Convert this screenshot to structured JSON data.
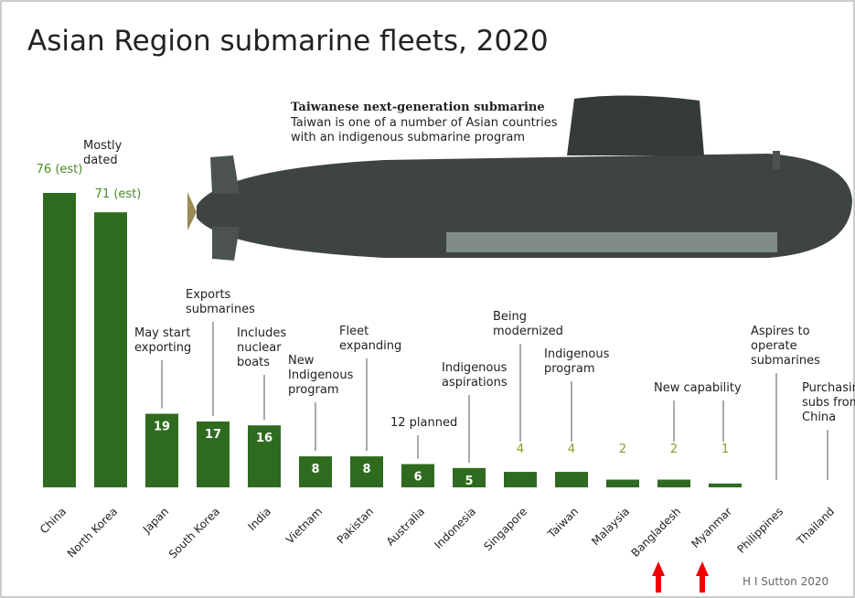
{
  "chart_data": {
    "type": "bar",
    "title": "Asian Region submarine fleets, 2020",
    "caption_title": "Taiwanese next-generation submarine",
    "caption_text": "Taiwan is one of a number of Asian countries\nwith an indigenous submarine program",
    "credit": "H I Sutton 2020",
    "color": "#2f6b1f",
    "categories": [
      "China",
      "North Korea",
      "Japan",
      "South Korea",
      "India",
      "Vietnam",
      "Pakistan",
      "Australia",
      "Indonesia",
      "Singapore",
      "Taiwan",
      "Malaysia",
      "Bangladesh",
      "Myanmar",
      "Philippines",
      "Thailand"
    ],
    "values": [
      76,
      71,
      19,
      17,
      16,
      8,
      8,
      6,
      5,
      4,
      4,
      2,
      2,
      1,
      0,
      0
    ],
    "value_labels": [
      "76 (est)",
      "71 (est)",
      null,
      null,
      null,
      null,
      null,
      null,
      null,
      null,
      null,
      null,
      null,
      null,
      null,
      null
    ],
    "notes": [
      null,
      "Mostly\ndated",
      "May start\nexporting",
      "Exports\nsubmarines",
      "Includes\nnuclear\nboats",
      "New\nIndigenous\nprogram",
      "Fleet\nexpanding",
      "12 planned",
      "Indigenous\naspirations",
      "Being\nmodernized",
      "Indigenous\nprogram",
      null,
      "New capability",
      null,
      "Aspires to\noperate\nsubmarines",
      "Purchasing\nsubs from\nChina"
    ]
  }
}
